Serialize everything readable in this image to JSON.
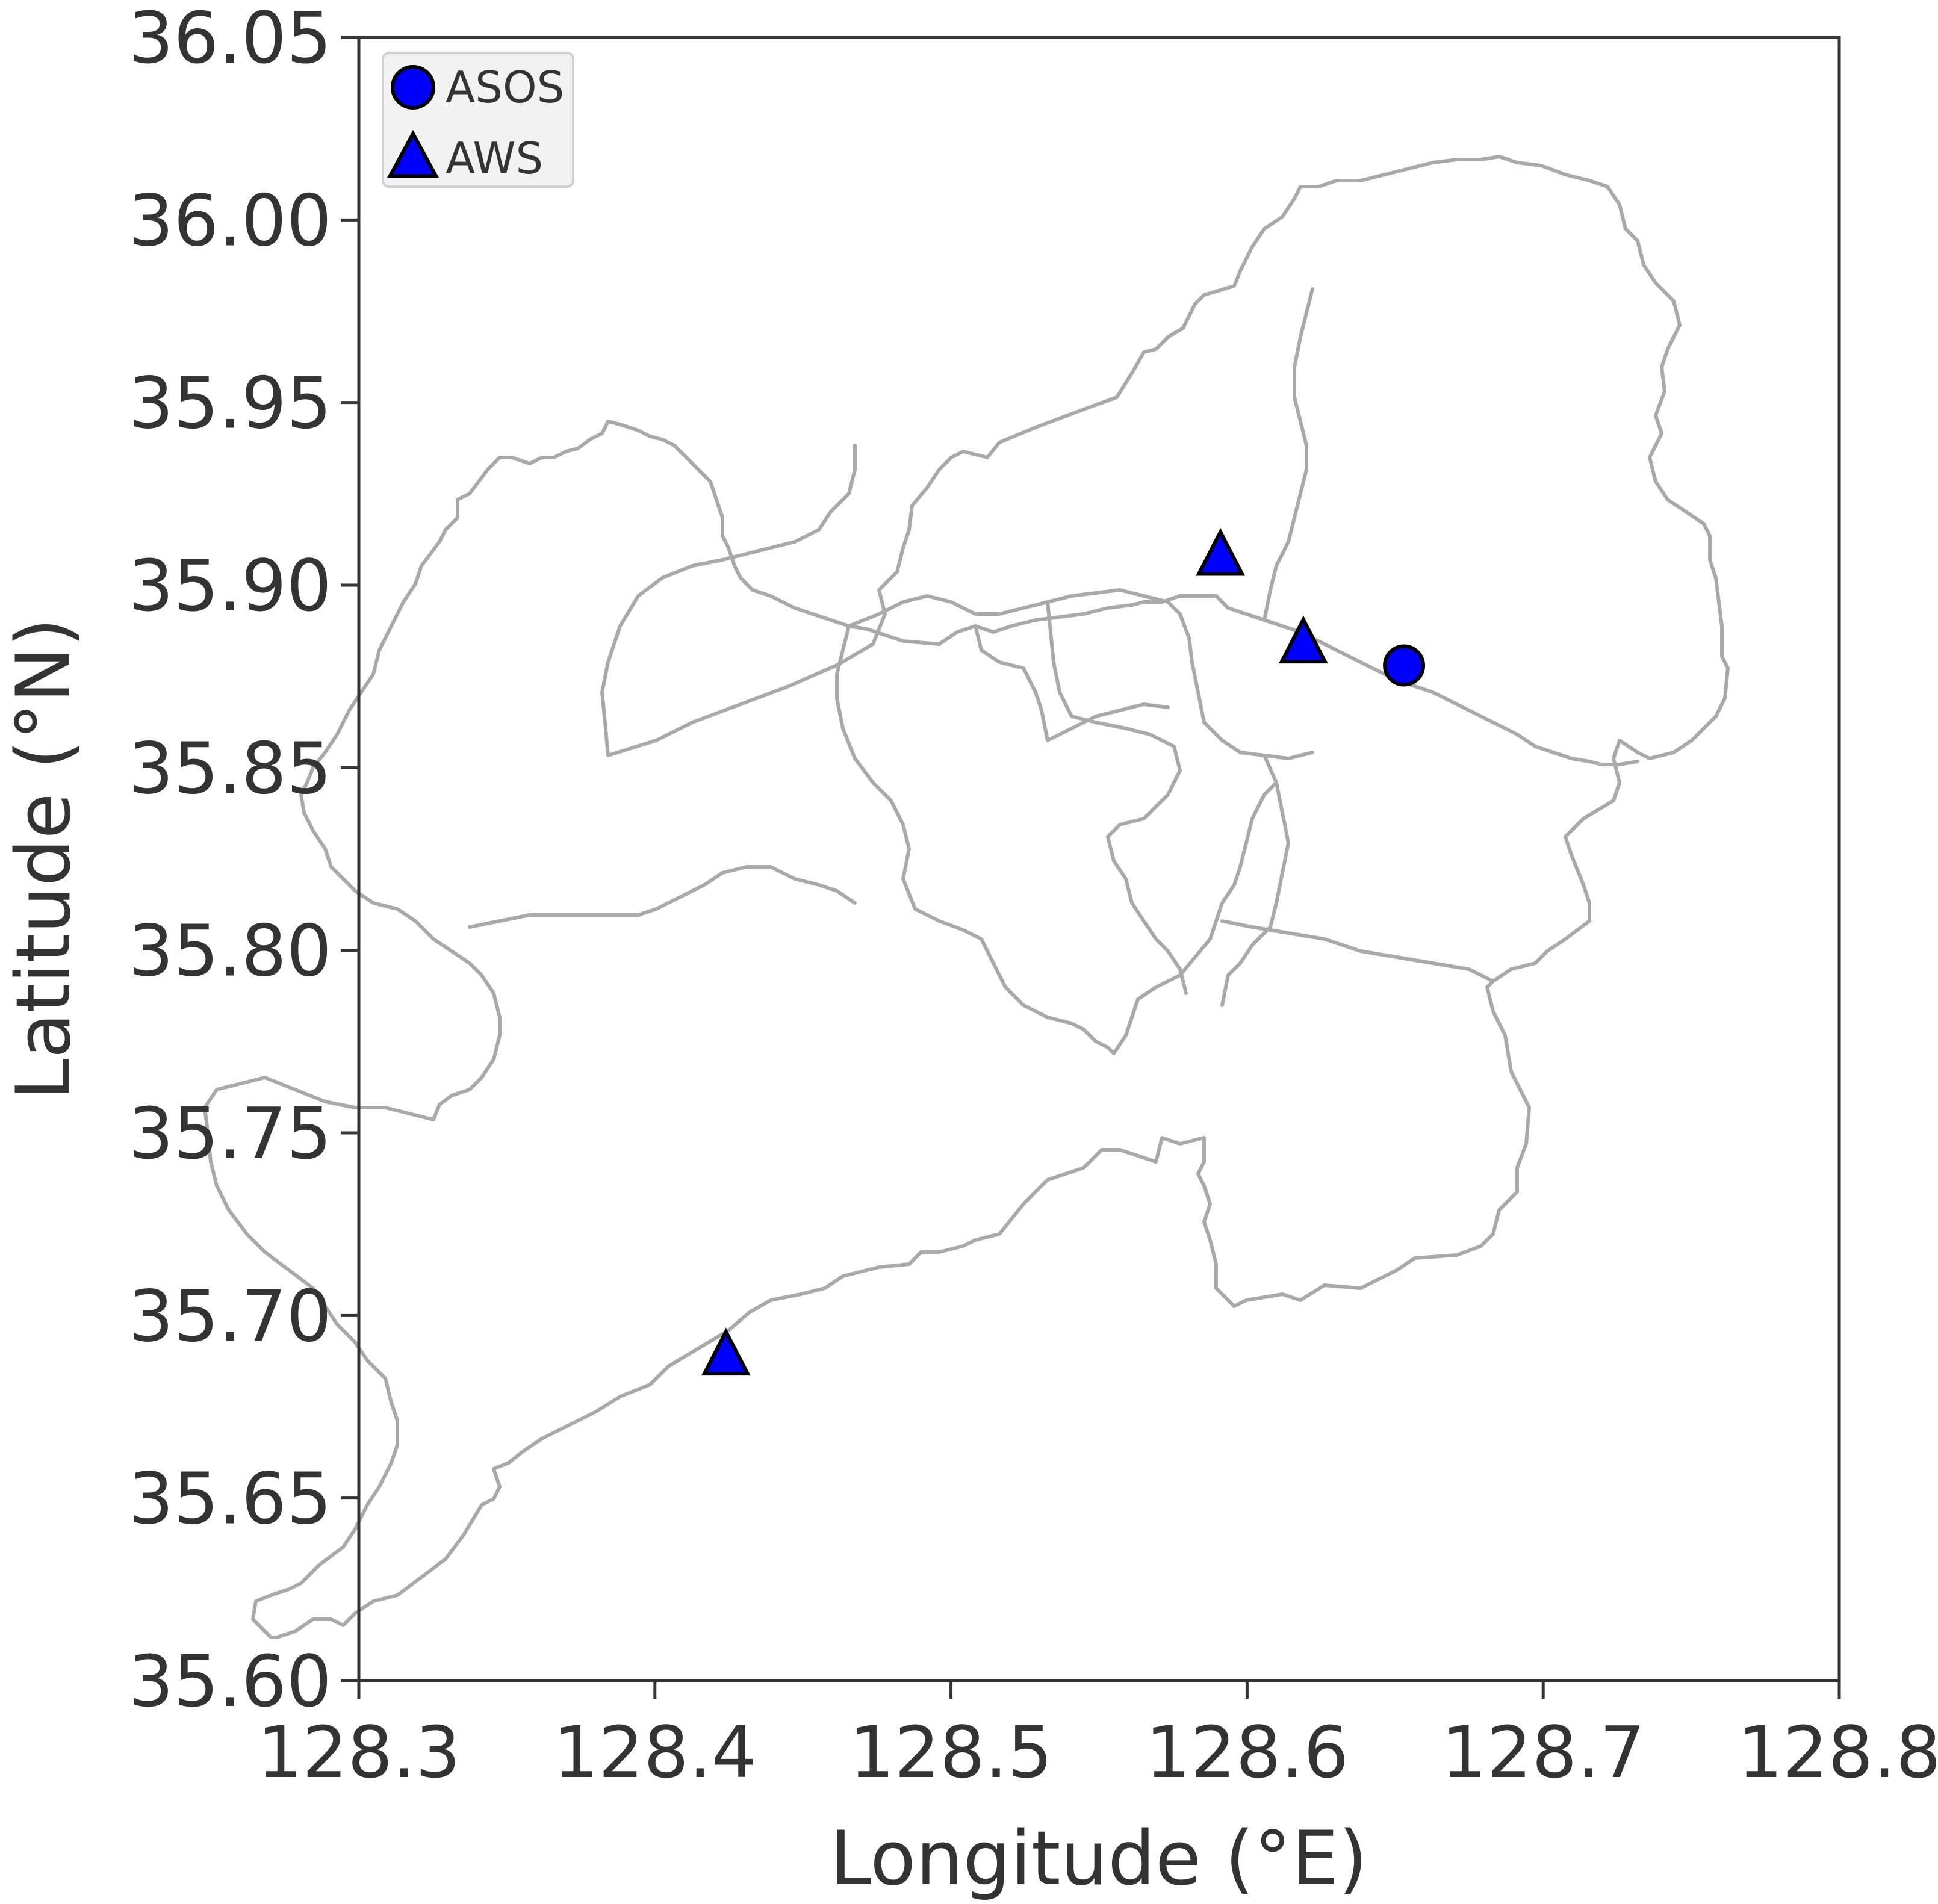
{
  "chart_data": {
    "type": "scatter",
    "xlabel": "Longitude (°E)",
    "ylabel": "Latitude (°N)",
    "xlim": [
      128.3,
      128.8
    ],
    "ylim": [
      35.6,
      36.05
    ],
    "xticks": [
      "128.3",
      "128.4",
      "128.5",
      "128.6",
      "128.7",
      "128.8"
    ],
    "yticks": [
      "35.60",
      "35.65",
      "35.70",
      "35.75",
      "35.80",
      "35.85",
      "35.90",
      "35.95",
      "36.00",
      "36.05"
    ],
    "legend_position": "top-left",
    "grid": false,
    "series": [
      {
        "name": "ASOS",
        "marker": "circle",
        "color": "#0000ff",
        "points": [
          {
            "x": 128.653,
            "y": 35.878
          }
        ]
      },
      {
        "name": "AWS",
        "marker": "triangle",
        "color": "#0000ff",
        "points": [
          {
            "x": 128.591,
            "y": 35.908
          },
          {
            "x": 128.619,
            "y": 35.884
          },
          {
            "x": 128.424,
            "y": 35.689
          }
        ]
      }
    ],
    "boundary_color": "#a9a9a9"
  }
}
